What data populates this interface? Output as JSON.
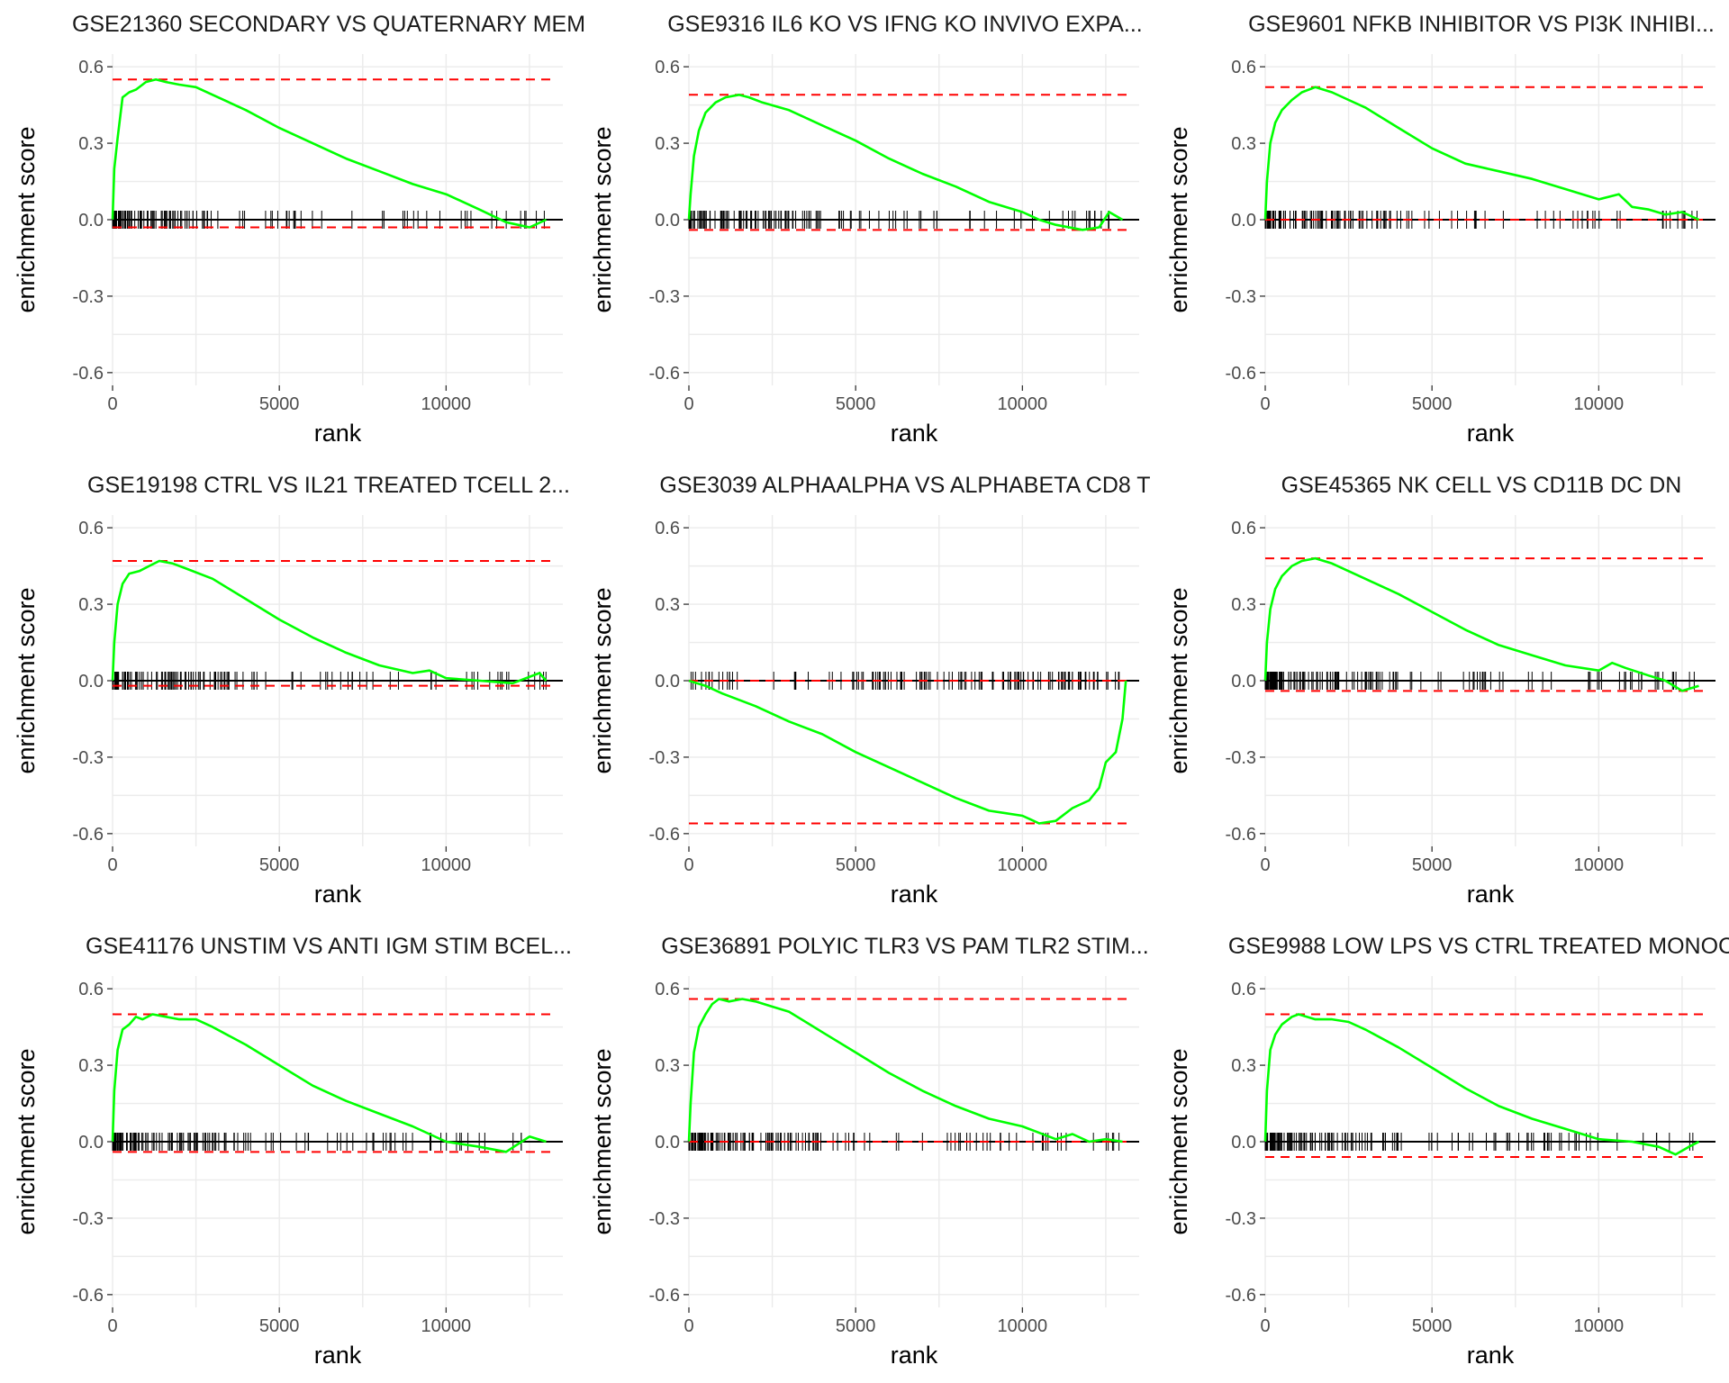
{
  "colors": {
    "curve": "#00ff00",
    "reference": "#ff0000",
    "rug": "#000000",
    "grid": "#ebebeb"
  },
  "chart_data": [
    {
      "type": "line",
      "title": "GSE21360 SECONDARY VS QUATERNARY MEM",
      "xlabel": "rank",
      "ylabel": "enrichment score",
      "xlim": [
        0,
        13500
      ],
      "ylim": [
        -0.65,
        0.65
      ],
      "x_ticks": [
        0,
        5000,
        10000
      ],
      "y_ticks": [
        -0.6,
        -0.3,
        0.0,
        0.3,
        0.6
      ],
      "x_tick_labels": [
        "0",
        "5000",
        "10000"
      ],
      "y_tick_labels": [
        "-0.6",
        "-0.3",
        "0.0",
        "0.3",
        "0.6"
      ],
      "grid": true,
      "max_es": 0.55,
      "min_es": -0.03,
      "series": [
        {
          "x": [
            0,
            50,
            150,
            300,
            500,
            700,
            1000,
            1300,
            1600,
            2000,
            2500,
            3000,
            4000,
            5000,
            6000,
            7000,
            8000,
            9000,
            10000,
            11000,
            11800,
            12500,
            13000
          ],
          "y": [
            0.0,
            0.2,
            0.32,
            0.48,
            0.5,
            0.51,
            0.54,
            0.55,
            0.54,
            0.53,
            0.52,
            0.49,
            0.43,
            0.36,
            0.3,
            0.24,
            0.19,
            0.14,
            0.1,
            0.04,
            -0.01,
            -0.03,
            0.0
          ]
        }
      ],
      "rug": {
        "dense_end": 4000,
        "sparse_end": 13000,
        "dense_count": 90,
        "sparse_count": 35
      }
    },
    {
      "type": "line",
      "title": "GSE9316 IL6 KO VS IFNG KO INVIVO EXPA...",
      "xlabel": "rank",
      "ylabel": "enrichment score",
      "xlim": [
        0,
        13500
      ],
      "ylim": [
        -0.65,
        0.65
      ],
      "x_ticks": [
        0,
        5000,
        10000
      ],
      "y_ticks": [
        -0.6,
        -0.3,
        0.0,
        0.3,
        0.6
      ],
      "x_tick_labels": [
        "0",
        "5000",
        "10000"
      ],
      "y_tick_labels": [
        "-0.6",
        "-0.3",
        "0.0",
        "0.3",
        "0.6"
      ],
      "grid": true,
      "max_es": 0.49,
      "min_es": -0.04,
      "series": [
        {
          "x": [
            0,
            50,
            150,
            300,
            500,
            800,
            1100,
            1500,
            1800,
            2200,
            3000,
            4000,
            5000,
            6000,
            7000,
            8000,
            9000,
            10000,
            10500,
            11000,
            11800,
            12300,
            12600,
            13000
          ],
          "y": [
            0.0,
            0.1,
            0.25,
            0.35,
            0.42,
            0.46,
            0.48,
            0.49,
            0.48,
            0.46,
            0.43,
            0.37,
            0.31,
            0.24,
            0.18,
            0.13,
            0.07,
            0.03,
            0.0,
            -0.02,
            -0.04,
            -0.03,
            0.03,
            0.0
          ]
        }
      ],
      "rug": {
        "dense_end": 4000,
        "sparse_end": 13000,
        "dense_count": 95,
        "sparse_count": 40
      }
    },
    {
      "type": "line",
      "title": "GSE9601 NFKB INHIBITOR VS PI3K INHIBI...",
      "xlabel": "rank",
      "ylabel": "enrichment score",
      "xlim": [
        0,
        13500
      ],
      "ylim": [
        -0.65,
        0.65
      ],
      "x_ticks": [
        0,
        5000,
        10000
      ],
      "y_ticks": [
        -0.6,
        -0.3,
        0.0,
        0.3,
        0.6
      ],
      "x_tick_labels": [
        "0",
        "5000",
        "10000"
      ],
      "y_tick_labels": [
        "-0.6",
        "-0.3",
        "0.0",
        "0.3",
        "0.6"
      ],
      "grid": true,
      "max_es": 0.52,
      "min_es": 0.0,
      "series": [
        {
          "x": [
            0,
            50,
            150,
            300,
            500,
            800,
            1100,
            1500,
            2000,
            2500,
            3000,
            4000,
            5000,
            6000,
            7000,
            8000,
            9000,
            10000,
            10600,
            11000,
            11500,
            12000,
            12500,
            13000
          ],
          "y": [
            0.0,
            0.15,
            0.3,
            0.38,
            0.43,
            0.47,
            0.5,
            0.52,
            0.5,
            0.47,
            0.44,
            0.36,
            0.28,
            0.22,
            0.19,
            0.16,
            0.12,
            0.08,
            0.1,
            0.05,
            0.04,
            0.02,
            0.03,
            0.0
          ]
        }
      ],
      "rug": {
        "dense_end": 4000,
        "sparse_end": 13000,
        "dense_count": 95,
        "sparse_count": 40
      }
    },
    {
      "type": "line",
      "title": "GSE19198 CTRL VS IL21 TREATED TCELL 2...",
      "xlabel": "rank",
      "ylabel": "enrichment score",
      "xlim": [
        0,
        13500
      ],
      "ylim": [
        -0.65,
        0.65
      ],
      "x_ticks": [
        0,
        5000,
        10000
      ],
      "y_ticks": [
        -0.6,
        -0.3,
        0.0,
        0.3,
        0.6
      ],
      "x_tick_labels": [
        "0",
        "5000",
        "10000"
      ],
      "y_tick_labels": [
        "-0.6",
        "-0.3",
        "0.0",
        "0.3",
        "0.6"
      ],
      "grid": true,
      "max_es": 0.47,
      "min_es": -0.02,
      "series": [
        {
          "x": [
            0,
            50,
            150,
            300,
            500,
            800,
            1100,
            1400,
            1800,
            2200,
            3000,
            4000,
            5000,
            6000,
            7000,
            8000,
            9000,
            9500,
            10000,
            11000,
            12000,
            12800,
            13000
          ],
          "y": [
            0.0,
            0.15,
            0.3,
            0.38,
            0.42,
            0.43,
            0.45,
            0.47,
            0.46,
            0.44,
            0.4,
            0.32,
            0.24,
            0.17,
            0.11,
            0.06,
            0.03,
            0.04,
            0.01,
            0.0,
            -0.01,
            0.03,
            0.0
          ]
        }
      ],
      "rug": {
        "dense_end": 4000,
        "sparse_end": 13000,
        "dense_count": 90,
        "sparse_count": 40
      }
    },
    {
      "type": "line",
      "title": "GSE3039 ALPHAALPHA VS ALPHABETA CD8 T",
      "xlabel": "rank",
      "ylabel": "enrichment score",
      "xlim": [
        0,
        13500
      ],
      "ylim": [
        -0.65,
        0.65
      ],
      "x_ticks": [
        0,
        5000,
        10000
      ],
      "y_ticks": [
        -0.6,
        -0.3,
        0.0,
        0.3,
        0.6
      ],
      "x_tick_labels": [
        "0",
        "5000",
        "10000"
      ],
      "y_tick_labels": [
        "-0.6",
        "-0.3",
        "0.0",
        "0.3",
        "0.6"
      ],
      "grid": true,
      "max_es": 0.0,
      "min_es": -0.56,
      "series": [
        {
          "x": [
            0,
            500,
            1000,
            2000,
            3000,
            4000,
            5000,
            6000,
            7000,
            8000,
            9000,
            9500,
            10000,
            10500,
            11000,
            11500,
            12000,
            12300,
            12500,
            12800,
            13000,
            13100
          ],
          "y": [
            0.0,
            -0.02,
            -0.05,
            -0.1,
            -0.16,
            -0.21,
            -0.28,
            -0.34,
            -0.4,
            -0.46,
            -0.51,
            -0.52,
            -0.53,
            -0.56,
            -0.55,
            -0.5,
            -0.47,
            -0.42,
            -0.32,
            -0.28,
            -0.15,
            0.0
          ]
        }
      ],
      "rug": {
        "dense_end": 13000,
        "sparse_end": 1500,
        "dense_count": 110,
        "sparse_count": 15,
        "dense_at_end": true
      }
    },
    {
      "type": "line",
      "title": "GSE45365 NK CELL VS CD11B DC DN",
      "xlabel": "rank",
      "ylabel": "enrichment score",
      "xlim": [
        0,
        13500
      ],
      "ylim": [
        -0.65,
        0.65
      ],
      "x_ticks": [
        0,
        5000,
        10000
      ],
      "y_ticks": [
        -0.6,
        -0.3,
        0.0,
        0.3,
        0.6
      ],
      "x_tick_labels": [
        "0",
        "5000",
        "10000"
      ],
      "y_tick_labels": [
        "-0.6",
        "-0.3",
        "0.0",
        "0.3",
        "0.6"
      ],
      "grid": true,
      "max_es": 0.48,
      "min_es": -0.04,
      "series": [
        {
          "x": [
            0,
            50,
            150,
            300,
            500,
            800,
            1100,
            1500,
            2000,
            2500,
            3000,
            4000,
            5000,
            6000,
            7000,
            8000,
            9000,
            10000,
            10400,
            10800,
            11500,
            12000,
            12500,
            13000
          ],
          "y": [
            0.0,
            0.15,
            0.28,
            0.36,
            0.41,
            0.45,
            0.47,
            0.48,
            0.46,
            0.43,
            0.4,
            0.34,
            0.27,
            0.2,
            0.14,
            0.1,
            0.06,
            0.04,
            0.07,
            0.05,
            0.02,
            0.0,
            -0.04,
            -0.02
          ]
        }
      ],
      "rug": {
        "dense_end": 4000,
        "sparse_end": 13000,
        "dense_count": 100,
        "sparse_count": 45
      }
    },
    {
      "type": "line",
      "title": "GSE41176 UNSTIM VS ANTI IGM STIM BCEL...",
      "xlabel": "rank",
      "ylabel": "enrichment score",
      "xlim": [
        0,
        13500
      ],
      "ylim": [
        -0.65,
        0.65
      ],
      "x_ticks": [
        0,
        5000,
        10000
      ],
      "y_ticks": [
        -0.6,
        -0.3,
        0.0,
        0.3,
        0.6
      ],
      "x_tick_labels": [
        "0",
        "5000",
        "10000"
      ],
      "y_tick_labels": [
        "-0.6",
        "-0.3",
        "0.0",
        "0.3",
        "0.6"
      ],
      "grid": true,
      "max_es": 0.5,
      "min_es": -0.04,
      "series": [
        {
          "x": [
            0,
            50,
            150,
            300,
            500,
            700,
            900,
            1200,
            1600,
            2000,
            2500,
            3000,
            4000,
            5000,
            6000,
            7000,
            8000,
            9000,
            10000,
            11000,
            11800,
            12500,
            13000
          ],
          "y": [
            0.0,
            0.2,
            0.36,
            0.44,
            0.46,
            0.49,
            0.48,
            0.5,
            0.49,
            0.48,
            0.48,
            0.45,
            0.38,
            0.3,
            0.22,
            0.16,
            0.11,
            0.06,
            0.0,
            -0.02,
            -0.04,
            0.02,
            0.0
          ]
        }
      ],
      "rug": {
        "dense_end": 4000,
        "sparse_end": 13000,
        "dense_count": 90,
        "sparse_count": 40
      }
    },
    {
      "type": "line",
      "title": "GSE36891 POLYIC TLR3 VS PAM TLR2 STIM...",
      "xlabel": "rank",
      "ylabel": "enrichment score",
      "xlim": [
        0,
        13500
      ],
      "ylim": [
        -0.65,
        0.65
      ],
      "x_ticks": [
        0,
        5000,
        10000
      ],
      "y_ticks": [
        -0.6,
        -0.3,
        0.0,
        0.3,
        0.6
      ],
      "x_tick_labels": [
        "0",
        "5000",
        "10000"
      ],
      "y_tick_labels": [
        "-0.6",
        "-0.3",
        "0.0",
        "0.3",
        "0.6"
      ],
      "grid": true,
      "max_es": 0.56,
      "min_es": 0.0,
      "series": [
        {
          "x": [
            0,
            50,
            150,
            300,
            500,
            700,
            900,
            1200,
            1600,
            2000,
            2500,
            3000,
            4000,
            5000,
            6000,
            7000,
            8000,
            9000,
            10000,
            11000,
            11500,
            12000,
            12500,
            13000
          ],
          "y": [
            0.0,
            0.15,
            0.35,
            0.45,
            0.5,
            0.54,
            0.56,
            0.55,
            0.56,
            0.55,
            0.53,
            0.51,
            0.43,
            0.35,
            0.27,
            0.2,
            0.14,
            0.09,
            0.06,
            0.01,
            0.03,
            0.0,
            0.01,
            0.0
          ]
        }
      ],
      "rug": {
        "dense_end": 4000,
        "sparse_end": 13000,
        "dense_count": 110,
        "sparse_count": 40
      }
    },
    {
      "type": "line",
      "title": "GSE9988 LOW LPS VS CTRL TREATED MONOC",
      "xlabel": "rank",
      "ylabel": "enrichment score",
      "xlim": [
        0,
        13500
      ],
      "ylim": [
        -0.65,
        0.65
      ],
      "x_ticks": [
        0,
        5000,
        10000
      ],
      "y_ticks": [
        -0.6,
        -0.3,
        0.0,
        0.3,
        0.6
      ],
      "x_tick_labels": [
        "0",
        "5000",
        "10000"
      ],
      "y_tick_labels": [
        "-0.6",
        "-0.3",
        "0.0",
        "0.3",
        "0.6"
      ],
      "grid": true,
      "max_es": 0.5,
      "min_es": -0.06,
      "series": [
        {
          "x": [
            0,
            50,
            150,
            300,
            500,
            800,
            1000,
            1500,
            2000,
            2500,
            3000,
            4000,
            5000,
            6000,
            7000,
            8000,
            9000,
            10000,
            11000,
            11800,
            12300,
            12700,
            13000
          ],
          "y": [
            0.0,
            0.2,
            0.36,
            0.42,
            0.46,
            0.49,
            0.5,
            0.48,
            0.48,
            0.47,
            0.44,
            0.37,
            0.29,
            0.21,
            0.14,
            0.09,
            0.05,
            0.01,
            0.0,
            -0.02,
            -0.05,
            -0.02,
            0.0
          ]
        }
      ],
      "rug": {
        "dense_end": 4000,
        "sparse_end": 13000,
        "dense_count": 95,
        "sparse_count": 45
      }
    }
  ]
}
